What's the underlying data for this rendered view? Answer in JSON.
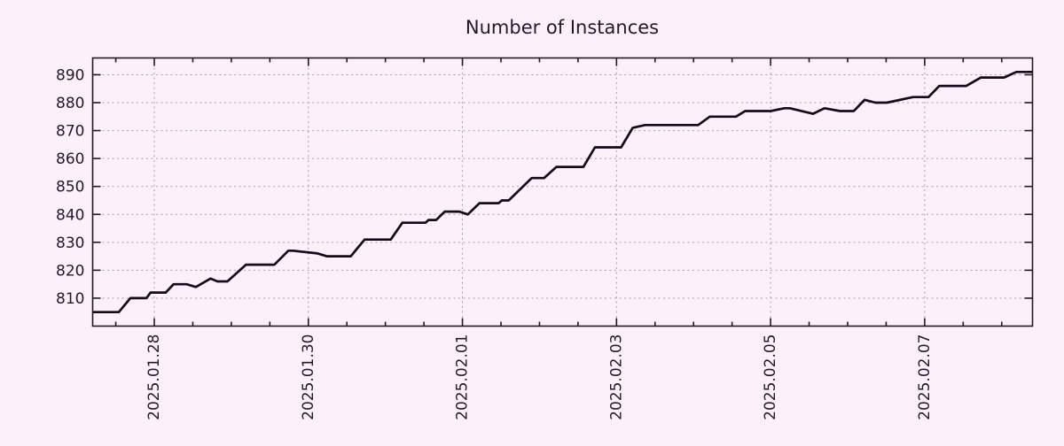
{
  "title": "Number of Instances",
  "colors": {
    "background": "#fcf0fb",
    "line": "#140a18",
    "grid": "#a7a0a8",
    "axis": "#1f1a24",
    "text": "#231a28"
  },
  "chart_data": {
    "type": "line",
    "title": "Number of Instances",
    "xlabel": "",
    "ylabel": "",
    "legend": false,
    "grid": true,
    "x_axis": {
      "unit": "days since 2025-01-27 00:00",
      "range": [
        0.2,
        12.4
      ],
      "major_ticks": [
        1,
        3,
        5,
        7,
        9,
        11
      ],
      "major_tick_labels": [
        "2025.01.28",
        "2025.01.30",
        "2025.02.01",
        "2025.02.03",
        "2025.02.05",
        "2025.02.07"
      ],
      "minor_tick_interval": 0.5,
      "label_rotation_deg": -90
    },
    "y_axis": {
      "range": [
        800,
        896
      ],
      "major_ticks": [
        810,
        820,
        830,
        840,
        850,
        860,
        870,
        880,
        890
      ],
      "major_tick_labels": [
        "810",
        "820",
        "830",
        "840",
        "850",
        "860",
        "870",
        "880",
        "890"
      ]
    },
    "series": [
      {
        "name": "instances",
        "color": "#140a18",
        "points": [
          [
            0.2,
            805
          ],
          [
            0.54,
            805
          ],
          [
            0.69,
            810
          ],
          [
            0.9,
            810
          ],
          [
            0.95,
            812
          ],
          [
            1.15,
            812
          ],
          [
            1.25,
            815
          ],
          [
            1.42,
            815
          ],
          [
            1.54,
            814
          ],
          [
            1.73,
            817
          ],
          [
            1.82,
            816
          ],
          [
            1.95,
            816
          ],
          [
            2.19,
            822
          ],
          [
            2.56,
            822
          ],
          [
            2.74,
            827
          ],
          [
            2.8,
            827
          ],
          [
            3.12,
            826
          ],
          [
            3.24,
            825
          ],
          [
            3.55,
            825
          ],
          [
            3.73,
            831
          ],
          [
            4.07,
            831
          ],
          [
            4.22,
            837
          ],
          [
            4.52,
            837
          ],
          [
            4.56,
            838
          ],
          [
            4.66,
            838
          ],
          [
            4.77,
            841
          ],
          [
            4.96,
            841
          ],
          [
            5.07,
            840
          ],
          [
            5.22,
            844
          ],
          [
            5.47,
            844
          ],
          [
            5.51,
            845
          ],
          [
            5.6,
            845
          ],
          [
            5.9,
            853
          ],
          [
            6.06,
            853
          ],
          [
            6.22,
            857
          ],
          [
            6.57,
            857
          ],
          [
            6.72,
            864
          ],
          [
            7.06,
            864
          ],
          [
            7.21,
            871
          ],
          [
            7.37,
            872
          ],
          [
            8.06,
            872
          ],
          [
            8.21,
            875
          ],
          [
            8.55,
            875
          ],
          [
            8.67,
            877
          ],
          [
            9.0,
            877
          ],
          [
            9.18,
            878
          ],
          [
            9.25,
            878
          ],
          [
            9.55,
            876
          ],
          [
            9.7,
            878
          ],
          [
            9.9,
            877
          ],
          [
            10.08,
            877
          ],
          [
            10.22,
            881
          ],
          [
            10.36,
            880
          ],
          [
            10.51,
            880
          ],
          [
            10.85,
            882
          ],
          [
            11.05,
            882
          ],
          [
            11.19,
            886
          ],
          [
            11.54,
            886
          ],
          [
            11.73,
            889
          ],
          [
            12.03,
            889
          ],
          [
            12.19,
            891
          ],
          [
            12.4,
            891
          ]
        ]
      }
    ]
  }
}
